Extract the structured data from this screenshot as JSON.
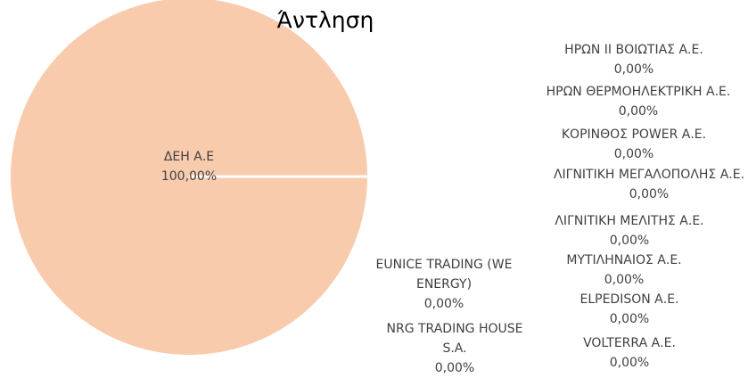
{
  "chart_data": {
    "type": "pie",
    "title": "Άντληση",
    "categories": [
      "ΔΕΗ Α.Ε",
      "ΗΡΩΝ ΙΙ ΒΟΙΩΤΙΑΣ Α.Ε.",
      "ΗΡΩΝ ΘΕΡΜΟΗΛΕΚΤΡΙΚΗ Α.Ε.",
      "ΚΟΡΙΝΘΟΣ POWER Α.Ε.",
      "ΛΙΓΝΙΤΙΚΗ ΜΕΓΑΛΟΠΟΛΗΣ Α.Ε.",
      "ΛΙΓΝΙΤΙΚΗ ΜΕΛΙΤΗΣ Α.Ε.",
      "ΜΥΤΙΛΗΝΑΙΟΣ Α.Ε.",
      "ELPEDISON Α.Ε.",
      "VOLTERRA Α.Ε.",
      "NRG TRADING HOUSE S.A.",
      "EUNICE TRADING (WE ENERGY)"
    ],
    "values": [
      100,
      0,
      0,
      0,
      0,
      0,
      0,
      0,
      0,
      0,
      0
    ],
    "value_labels": [
      "100,00%",
      "0,00%",
      "0,00%",
      "0,00%",
      "0,00%",
      "0,00%",
      "0,00%",
      "0,00%",
      "0,00%",
      "0,00%",
      "0,00%"
    ],
    "color": "#f8cbad"
  }
}
